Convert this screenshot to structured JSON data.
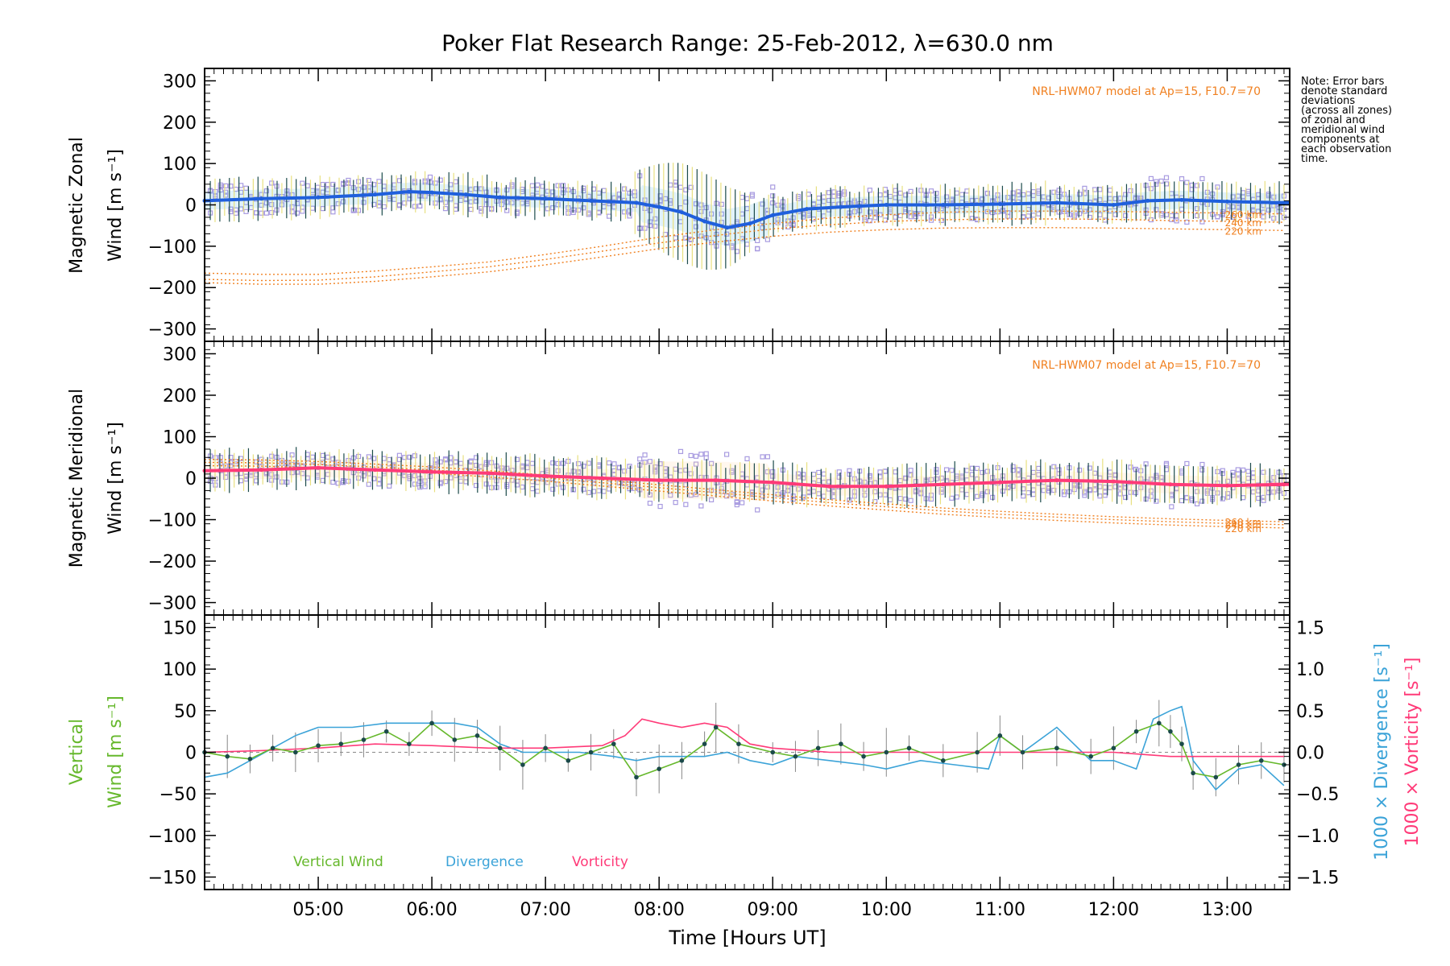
{
  "title": "Poker Flat Research Range: 25-Feb-2012, λ=630.0 nm",
  "note_lines": [
    "Note: Error bars",
    "denote standard",
    "deviations",
    "(across all zones)",
    "of zonal and",
    "meridional wind",
    "components at",
    "each observation",
    "time."
  ],
  "colors": {
    "zonal": "#1f5fdc",
    "zonal_light": "#5bb5e8",
    "meridional": "#ff3a78",
    "model": "#f08020",
    "vertical": "#66b82c",
    "divergence": "#3ba3d8",
    "vorticity": "#ff3a78",
    "scatter": "#a89be0",
    "errbar_dark": "#1b4a4a",
    "errbar_light": "#e8e080"
  },
  "chart_data": [
    {
      "type": "line",
      "panel": "zonal",
      "ylabel_line1": "Magnetic Zonal",
      "ylabel_line2": "Wind [m s⁻¹]",
      "ylim": [
        -330,
        330
      ],
      "yticks": [
        300,
        200,
        100,
        0,
        -100,
        -200,
        -300
      ],
      "ytick_labels": [
        "300",
        "200",
        "100",
        "0",
        "−100",
        "−200",
        "−300"
      ],
      "model_label": "NRL-HWM07 model at Ap=15, F10.7=70",
      "model_alt_labels": [
        "260 km",
        "240 km",
        "220 km"
      ],
      "series": [
        {
          "name": "",
          "role": "measured",
          "x": [
            4.0,
            4.5,
            5.0,
            5.5,
            5.8,
            6.0,
            6.3,
            6.6,
            7.0,
            7.4,
            7.8,
            8.0,
            8.2,
            8.4,
            8.6,
            8.8,
            9.0,
            9.3,
            9.6,
            10.0,
            10.5,
            11.0,
            11.5,
            12.0,
            12.3,
            12.6,
            13.0,
            13.5
          ],
          "y": [
            10,
            15,
            18,
            25,
            32,
            30,
            25,
            18,
            15,
            10,
            5,
            -5,
            -18,
            -40,
            -55,
            -45,
            -25,
            -10,
            -5,
            0,
            0,
            2,
            5,
            0,
            10,
            12,
            8,
            5
          ]
        },
        {
          "name": "260 km",
          "role": "model",
          "x": [
            4.0,
            4.5,
            5.0,
            5.5,
            6.0,
            6.5,
            7.0,
            7.5,
            8.0,
            8.5,
            9.0,
            9.5,
            10.0,
            10.5,
            11.0,
            11.5,
            12.0,
            12.5,
            13.0,
            13.5
          ],
          "y": [
            -165,
            -168,
            -168,
            -160,
            -150,
            -138,
            -120,
            -100,
            -78,
            -60,
            -45,
            -32,
            -24,
            -18,
            -15,
            -15,
            -16,
            -18,
            -20,
            -22
          ]
        },
        {
          "name": "240 km",
          "role": "model",
          "x": [
            4.0,
            4.5,
            5.0,
            5.5,
            6.0,
            6.5,
            7.0,
            7.5,
            8.0,
            8.5,
            9.0,
            9.5,
            10.0,
            10.5,
            11.0,
            11.5,
            12.0,
            12.5,
            13.0,
            13.5
          ],
          "y": [
            -180,
            -183,
            -182,
            -174,
            -162,
            -150,
            -132,
            -112,
            -92,
            -74,
            -58,
            -48,
            -40,
            -36,
            -34,
            -34,
            -35,
            -38,
            -40,
            -42
          ]
        },
        {
          "name": "220 km",
          "role": "model",
          "x": [
            4.0,
            4.5,
            5.0,
            5.5,
            6.0,
            6.5,
            7.0,
            7.5,
            8.0,
            8.5,
            9.0,
            9.5,
            10.0,
            10.5,
            11.0,
            11.5,
            12.0,
            12.5,
            13.0,
            13.5
          ],
          "y": [
            -188,
            -192,
            -192,
            -185,
            -174,
            -162,
            -145,
            -126,
            -106,
            -90,
            -76,
            -66,
            -60,
            -56,
            -55,
            -55,
            -56,
            -58,
            -60,
            -62
          ]
        }
      ]
    },
    {
      "type": "line",
      "panel": "meridional",
      "ylabel_line1": "Magnetic Meridional",
      "ylabel_line2": "Wind [m s⁻¹]",
      "ylim": [
        -330,
        330
      ],
      "yticks": [
        300,
        200,
        100,
        0,
        -100,
        -200,
        -300
      ],
      "ytick_labels": [
        "300",
        "200",
        "100",
        "0",
        "−100",
        "−200",
        "−300"
      ],
      "model_label": "NRL-HWM07 model at Ap=15, F10.7=70",
      "model_alt_labels": [
        "260 km",
        "240 km",
        "220 km"
      ],
      "series": [
        {
          "name": "",
          "role": "measured",
          "x": [
            4.0,
            4.5,
            5.0,
            5.5,
            6.0,
            6.5,
            7.0,
            7.5,
            8.0,
            8.5,
            9.0,
            9.5,
            10.0,
            10.5,
            11.0,
            11.5,
            12.0,
            12.5,
            13.0,
            13.5
          ],
          "y": [
            18,
            20,
            25,
            20,
            15,
            12,
            5,
            0,
            -5,
            -5,
            -10,
            -20,
            -20,
            -15,
            -10,
            -5,
            -8,
            -15,
            -18,
            -15
          ]
        },
        {
          "name": "260 km",
          "role": "model",
          "x": [
            4.0,
            4.5,
            5.0,
            5.5,
            6.0,
            6.5,
            7.0,
            7.5,
            8.0,
            8.5,
            9.0,
            9.5,
            10.0,
            10.5,
            11.0,
            11.5,
            12.0,
            12.5,
            13.0,
            13.5
          ],
          "y": [
            45,
            44,
            40,
            34,
            27,
            18,
            8,
            -4,
            -16,
            -28,
            -40,
            -52,
            -62,
            -72,
            -80,
            -87,
            -93,
            -98,
            -102,
            -105
          ]
        },
        {
          "name": "240 km",
          "role": "model",
          "x": [
            4.0,
            4.5,
            5.0,
            5.5,
            6.0,
            6.5,
            7.0,
            7.5,
            8.0,
            8.5,
            9.0,
            9.5,
            10.0,
            10.5,
            11.0,
            11.5,
            12.0,
            12.5,
            13.0,
            13.5
          ],
          "y": [
            38,
            37,
            33,
            27,
            20,
            11,
            1,
            -11,
            -23,
            -35,
            -47,
            -59,
            -69,
            -79,
            -87,
            -94,
            -100,
            -105,
            -109,
            -112
          ]
        },
        {
          "name": "220 km",
          "role": "model",
          "x": [
            4.0,
            4.5,
            5.0,
            5.5,
            6.0,
            6.5,
            7.0,
            7.5,
            8.0,
            8.5,
            9.0,
            9.5,
            10.0,
            10.5,
            11.0,
            11.5,
            12.0,
            12.5,
            13.0,
            13.5
          ],
          "y": [
            30,
            29,
            25,
            19,
            12,
            3,
            -7,
            -19,
            -31,
            -43,
            -55,
            -67,
            -77,
            -87,
            -95,
            -102,
            -108,
            -113,
            -117,
            -120
          ]
        }
      ]
    },
    {
      "type": "line",
      "panel": "vertical",
      "ylabel_line1": "Vertical",
      "ylabel_line2": "Wind [m s⁻¹]",
      "right_label_divergence": "1000 × Divergence [s⁻¹]",
      "right_label_vorticity": "1000 × Vorticity [s⁻¹]",
      "ylim": [
        -165,
        165
      ],
      "yticks": [
        150,
        100,
        50,
        0,
        -50,
        -100,
        -150
      ],
      "ytick_labels": [
        "150",
        "100",
        "50",
        "0",
        "−50",
        "−100",
        "−150"
      ],
      "y2lim": [
        -1.65,
        1.65
      ],
      "y2ticks": [
        1.5,
        1.0,
        0.5,
        0.0,
        -0.5,
        -1.0,
        -1.5
      ],
      "y2tick_labels": [
        "1.5",
        "1.0",
        "0.5",
        "0.0",
        "−0.5",
        "−1.0",
        "−1.5"
      ],
      "legend": [
        "Vertical Wind",
        "Divergence",
        "Vorticity"
      ],
      "series": [
        {
          "name": "Vertical Wind",
          "axis": "left",
          "x": [
            4.0,
            4.2,
            4.4,
            4.6,
            4.8,
            5.0,
            5.2,
            5.4,
            5.6,
            5.8,
            6.0,
            6.2,
            6.4,
            6.6,
            6.8,
            7.0,
            7.2,
            7.4,
            7.6,
            7.8,
            8.0,
            8.2,
            8.4,
            8.5,
            8.7,
            9.0,
            9.2,
            9.4,
            9.6,
            9.8,
            10.0,
            10.2,
            10.5,
            10.8,
            11.0,
            11.2,
            11.5,
            11.8,
            12.0,
            12.2,
            12.4,
            12.5,
            12.6,
            12.7,
            12.9,
            13.1,
            13.3,
            13.5
          ],
          "y": [
            0,
            -5,
            -8,
            5,
            0,
            8,
            10,
            15,
            25,
            10,
            35,
            15,
            20,
            5,
            -15,
            5,
            -10,
            0,
            10,
            -30,
            -20,
            -10,
            10,
            30,
            10,
            0,
            -5,
            5,
            10,
            -5,
            0,
            5,
            -10,
            0,
            20,
            0,
            5,
            -5,
            5,
            25,
            35,
            25,
            10,
            -25,
            -30,
            -15,
            -10,
            -15
          ]
        },
        {
          "name": "Divergence",
          "axis": "right",
          "x": [
            4.0,
            4.2,
            4.4,
            4.6,
            4.8,
            5.0,
            5.3,
            5.6,
            5.9,
            6.2,
            6.4,
            6.6,
            6.8,
            7.0,
            7.3,
            7.6,
            7.8,
            8.0,
            8.2,
            8.4,
            8.6,
            8.8,
            9.0,
            9.2,
            9.5,
            9.8,
            10.0,
            10.3,
            10.6,
            10.9,
            11.0,
            11.2,
            11.5,
            11.8,
            12.0,
            12.2,
            12.35,
            12.5,
            12.6,
            12.7,
            12.9,
            13.1,
            13.3,
            13.5
          ],
          "y": [
            -0.3,
            -0.25,
            -0.1,
            0.05,
            0.2,
            0.3,
            0.3,
            0.35,
            0.35,
            0.35,
            0.3,
            0.1,
            0.0,
            0.0,
            0.0,
            -0.05,
            -0.1,
            -0.05,
            -0.05,
            -0.05,
            0.0,
            -0.1,
            -0.15,
            -0.05,
            -0.1,
            -0.15,
            -0.2,
            -0.1,
            -0.15,
            -0.2,
            0.2,
            0.0,
            0.3,
            -0.1,
            -0.1,
            -0.2,
            0.4,
            0.5,
            0.55,
            -0.1,
            -0.45,
            -0.2,
            -0.15,
            -0.4
          ]
        },
        {
          "name": "Vorticity",
          "axis": "right",
          "x": [
            4.0,
            4.5,
            5.0,
            5.5,
            6.0,
            6.5,
            7.0,
            7.5,
            7.7,
            7.85,
            8.0,
            8.2,
            8.4,
            8.6,
            8.8,
            9.0,
            9.5,
            10.0,
            10.5,
            11.0,
            11.5,
            12.0,
            12.5,
            13.0,
            13.5
          ],
          "y": [
            0.0,
            0.02,
            0.05,
            0.1,
            0.08,
            0.05,
            0.05,
            0.08,
            0.2,
            0.4,
            0.35,
            0.3,
            0.35,
            0.3,
            0.1,
            0.05,
            0.0,
            0.0,
            0.0,
            0.0,
            0.0,
            0.0,
            -0.05,
            -0.05,
            -0.05
          ]
        }
      ]
    }
  ],
  "x_axis": {
    "label": "Time [Hours UT]",
    "xlim": [
      4.0,
      13.55
    ],
    "ticks": [
      5,
      6,
      7,
      8,
      9,
      10,
      11,
      12,
      13
    ],
    "tick_labels": [
      "05:00",
      "06:00",
      "07:00",
      "08:00",
      "09:00",
      "10:00",
      "11:00",
      "12:00",
      "13:00"
    ]
  }
}
